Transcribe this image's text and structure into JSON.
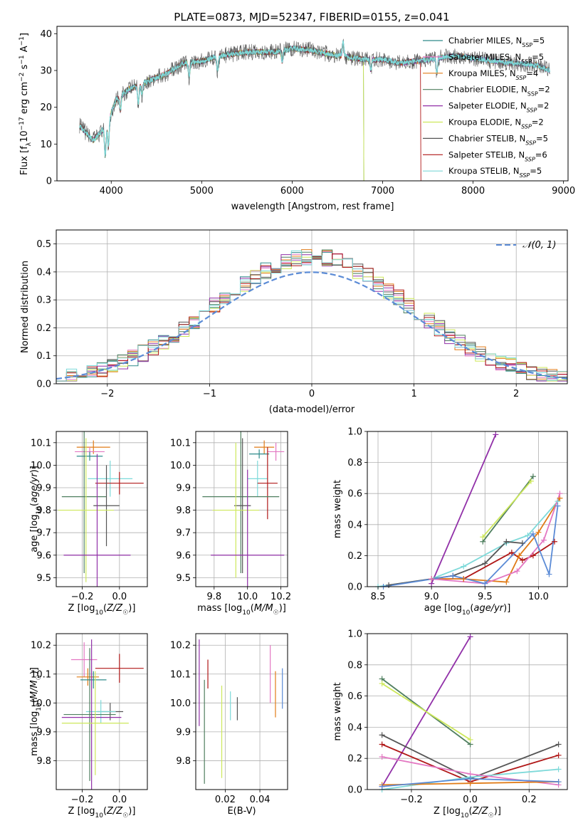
{
  "title": "PLATE=0873, MJD=52347, FIBERID=0155, z=0.041",
  "colors": {
    "Chabrier MILES": "#2e8b8b",
    "Salpeter MILES": "#e377c2",
    "Kroupa MILES": "#e07b17",
    "Chabrier ELODIE": "#4f7f5f",
    "Salpeter ELODIE": "#9130a8",
    "Kroupa ELODIE": "#cde85a",
    "Chabrier STELIB": "#555555",
    "Salpeter STELIB": "#b01717",
    "Kroupa STELIB": "#7dd9d9",
    "normal": "#5b8bd6"
  },
  "chart_data": [
    {
      "type": "line",
      "title": "PLATE=0873, MJD=52347, FIBERID=0155, z=0.041",
      "xlabel": "wavelength [Angstrom, rest frame]",
      "ylabel": "Flux [f_λ 10^-17 erg cm^-2 s^-1 A^-1]",
      "xlim": [
        3400,
        9050
      ],
      "ylim": [
        0,
        42
      ],
      "xticks": [
        "4000",
        "5000",
        "6000",
        "7000",
        "8000",
        "9000"
      ],
      "yticks": [
        "0",
        "10",
        "20",
        "30",
        "40"
      ],
      "legend": [
        {
          "label": "Chabrier MILES, N_SSP=5",
          "color": "#2e8b8b"
        },
        {
          "label": "Salpeter MILES, N_SSP=5",
          "color": "#e377c2"
        },
        {
          "label": "Kroupa MILES, N_SSP=4",
          "color": "#e07b17"
        },
        {
          "label": "Chabrier ELODIE, N_SSP=2",
          "color": "#4f7f5f"
        },
        {
          "label": "Salpeter ELODIE, N_SSP=2",
          "color": "#9130a8"
        },
        {
          "label": "Kroupa ELODIE, N_SSP=2",
          "color": "#cde85a"
        },
        {
          "label": "Chabrier STELIB, N_SSP=5",
          "color": "#555555"
        },
        {
          "label": "Salpeter STELIB, N_SSP=6",
          "color": "#b01717"
        },
        {
          "label": "Kroupa STELIB, N_SSP=5",
          "color": "#7dd9d9"
        }
      ],
      "legend_position": "upper right",
      "continuum": {
        "x": [
          3650,
          3800,
          3950,
          4050,
          4200,
          4400,
          4600,
          4800,
          5000,
          5200,
          5500,
          5800,
          6000,
          6200,
          6500,
          6800,
          7000,
          7200,
          7500,
          7800,
          8100,
          8400,
          8700,
          8850
        ],
        "y": [
          15,
          11,
          15,
          22,
          25,
          27,
          29,
          32,
          32.5,
          34,
          35,
          35,
          36,
          35.5,
          34,
          33,
          33,
          32,
          33,
          34,
          33,
          32,
          31.5,
          30
        ]
      },
      "series_cutoffs": [
        {
          "name": "Salpeter STELIB",
          "wavelength": 7420
        },
        {
          "name": "Kroupa ELODIE",
          "wavelength": 6790
        },
        {
          "name": "Chabrier ELODIE",
          "wavelength": 6790
        }
      ]
    },
    {
      "type": "line",
      "xlabel": "(data-model)/error",
      "ylabel": "Normed distribution",
      "xlim": [
        -2.5,
        2.5
      ],
      "ylim": [
        0,
        0.55
      ],
      "xticks": [
        "−2",
        "−1",
        "0",
        "1",
        "2"
      ],
      "yticks": [
        "0.0",
        "0.1",
        "0.2",
        "0.3",
        "0.4",
        "0.5"
      ],
      "legend": [
        {
          "label": "𝒩(0, 1)",
          "color": "#5b8bd6"
        }
      ],
      "histogram_bin_width": 0.1,
      "histogram_series": [
        "Chabrier MILES",
        "Salpeter MILES",
        "Kroupa MILES",
        "Chabrier ELODIE",
        "Salpeter ELODIE",
        "Kroupa ELODIE",
        "Chabrier STELIB",
        "Salpeter STELIB",
        "Kroupa STELIB"
      ]
    },
    {
      "type": "scatter",
      "xlabel": "Z [log10(Z/Z☉)]",
      "ylabel": "age [log10(age/yr)]",
      "xlim": [
        -0.34,
        0.15
      ],
      "ylim": [
        9.46,
        10.15
      ],
      "xticks": [
        "−0.2",
        "0.0"
      ],
      "yticks": [
        "9.5",
        "9.6",
        "9.7",
        "9.8",
        "9.9",
        "10.0",
        "10.1"
      ],
      "points": [
        {
          "name": "Kroupa MILES",
          "x": -0.14,
          "y": 10.08,
          "xerr": 0.09,
          "yerr": 0.03
        },
        {
          "name": "Salpeter MILES",
          "x": -0.16,
          "y": 10.06,
          "xerr": 0.08,
          "yerr": 0.02
        },
        {
          "name": "Chabrier MILES",
          "x": -0.16,
          "y": 10.04,
          "xerr": 0.07,
          "yerr": 0.02
        },
        {
          "name": "Kroupa STELIB",
          "x": -0.05,
          "y": 9.94,
          "xerr": 0.12,
          "yerr": 0.08
        },
        {
          "name": "Salpeter STELIB",
          "x": 0.0,
          "y": 9.92,
          "xerr": 0.13,
          "yerr": 0.05
        },
        {
          "name": "Chabrier ELODIE",
          "x": -0.19,
          "y": 9.86,
          "xerr": 0.12,
          "yerr": 0.34
        },
        {
          "name": "Chabrier STELIB",
          "x": -0.07,
          "y": 9.82,
          "xerr": 0.07,
          "yerr": 0.18
        },
        {
          "name": "Kroupa ELODIE",
          "x": -0.18,
          "y": 9.8,
          "xerr": 0.15,
          "yerr": 0.32
        },
        {
          "name": "Salpeter ELODIE",
          "x": -0.12,
          "y": 9.6,
          "xerr": 0.18,
          "yerr": 0.45
        }
      ]
    },
    {
      "type": "scatter",
      "xlabel": "mass [log10(M/M☉)]",
      "xlim": [
        9.69,
        10.24
      ],
      "ylim": [
        9.46,
        10.15
      ],
      "xticks": [
        "9.8",
        "10.0",
        "10.2"
      ],
      "yticks": [
        "9.5",
        "9.6",
        "9.7",
        "9.8",
        "9.9",
        "10.0",
        "10.1"
      ],
      "points": [
        {
          "name": "Kroupa MILES",
          "x": 10.1,
          "y": 10.08,
          "xerr": 0.06,
          "yerr": 0.03
        },
        {
          "name": "Salpeter MILES",
          "x": 10.17,
          "y": 10.06,
          "xerr": 0.05,
          "yerr": 0.04
        },
        {
          "name": "Chabrier MILES",
          "x": 10.07,
          "y": 10.05,
          "xerr": 0.06,
          "yerr": 0.02
        },
        {
          "name": "Kroupa STELIB",
          "x": 10.06,
          "y": 9.94,
          "xerr": 0.06,
          "yerr": 0.08
        },
        {
          "name": "Salpeter STELIB",
          "x": 10.12,
          "y": 9.92,
          "xerr": 0.06,
          "yerr": 0.16
        },
        {
          "name": "Chabrier ELODIE",
          "x": 9.96,
          "y": 9.86,
          "xerr": 0.23,
          "yerr": 0.34
        },
        {
          "name": "Chabrier STELIB",
          "x": 9.97,
          "y": 9.82,
          "xerr": 0.05,
          "yerr": 0.3
        },
        {
          "name": "Kroupa ELODIE",
          "x": 9.93,
          "y": 9.8,
          "xerr": 0.14,
          "yerr": 0.3
        },
        {
          "name": "Salpeter ELODIE",
          "x": 10.0,
          "y": 9.6,
          "xerr": 0.22,
          "yerr": 0.38
        }
      ]
    },
    {
      "type": "line",
      "xlabel": "age [log10(age/yr)]",
      "ylabel": "mass weight",
      "xlim": [
        8.4,
        10.27
      ],
      "ylim": [
        0,
        1
      ],
      "xticks": [
        "8.5",
        "9.0",
        "9.5",
        "10.0"
      ],
      "yticks": [
        "0.0",
        "0.2",
        "0.4",
        "0.6",
        "0.8",
        "1.0"
      ],
      "series": [
        {
          "name": "Salpeter ELODIE",
          "x": [
            9.0,
            9.6
          ],
          "y": [
            0.02,
            0.98
          ]
        },
        {
          "name": "Chabrier ELODIE",
          "x": [
            9.48,
            9.95
          ],
          "y": [
            0.29,
            0.71
          ]
        },
        {
          "name": "Kroupa ELODIE",
          "x": [
            9.48,
            9.93
          ],
          "y": [
            0.32,
            0.68
          ]
        },
        {
          "name": "Kroupa STELIB",
          "x": [
            8.5,
            9.0,
            9.3,
            9.7,
            9.9,
            10.18
          ],
          "y": [
            0.0,
            0.05,
            0.13,
            0.28,
            0.33,
            0.55
          ]
        },
        {
          "name": "Chabrier STELIB",
          "x": [
            8.6,
            9.2,
            9.5,
            9.7,
            9.85
          ],
          "y": [
            0.01,
            0.07,
            0.15,
            0.29,
            0.28
          ]
        },
        {
          "name": "Salpeter STELIB",
          "x": [
            9.0,
            9.3,
            9.75,
            9.85,
            9.95,
            10.15
          ],
          "y": [
            0.05,
            0.05,
            0.22,
            0.17,
            0.2,
            0.29
          ]
        },
        {
          "name": "Kroupa MILES",
          "x": [
            9.0,
            9.3,
            9.7,
            9.82,
            10.0,
            10.2
          ],
          "y": [
            0.05,
            0.05,
            0.03,
            0.2,
            0.35,
            0.57
          ]
        },
        {
          "name": "Salpeter MILES",
          "x": [
            9.0,
            9.5,
            9.8,
            10.05,
            10.2
          ],
          "y": [
            0.05,
            0.02,
            0.1,
            0.3,
            0.6
          ]
        },
        {
          "name": "normal",
          "x": [
            8.55,
            9.2,
            9.5,
            9.95,
            10.1,
            10.18
          ],
          "y": [
            0.0,
            0.07,
            0.02,
            0.34,
            0.08,
            0.52
          ]
        }
      ]
    },
    {
      "type": "scatter",
      "xlabel": "Z [log10(Z/Z☉)]",
      "ylabel": "mass [log10(M/M☉)]",
      "xlim": [
        -0.34,
        0.15
      ],
      "ylim": [
        9.7,
        10.24
      ],
      "xticks": [
        "−0.2",
        "0.0"
      ],
      "yticks": [
        "9.8",
        "9.9",
        "10.0",
        "10.1",
        "10.2"
      ],
      "points": [
        {
          "name": "Salpeter MILES",
          "x": -0.19,
          "y": 10.15,
          "xerr": 0.07,
          "yerr": 0.06
        },
        {
          "name": "Salpeter STELIB",
          "x": 0.0,
          "y": 10.12,
          "xerr": 0.13,
          "yerr": 0.05
        },
        {
          "name": "Kroupa MILES",
          "x": -0.17,
          "y": 10.09,
          "xerr": 0.06,
          "yerr": 0.03
        },
        {
          "name": "Chabrier MILES",
          "x": -0.14,
          "y": 10.08,
          "xerr": 0.07,
          "yerr": 0.03
        },
        {
          "name": "Chabrier STELIB",
          "x": -0.05,
          "y": 9.97,
          "xerr": 0.07,
          "yerr": 0.03
        },
        {
          "name": "Kroupa STELIB",
          "x": -0.1,
          "y": 9.97,
          "xerr": 0.08,
          "yerr": 0.04
        },
        {
          "name": "Chabrier ELODIE",
          "x": -0.16,
          "y": 9.96,
          "xerr": 0.14,
          "yerr": 0.23
        },
        {
          "name": "Salpeter ELODIE",
          "x": -0.15,
          "y": 9.95,
          "xerr": 0.16,
          "yerr": 0.27
        },
        {
          "name": "Kroupa ELODIE",
          "x": -0.13,
          "y": 9.93,
          "xerr": 0.18,
          "yerr": 0.18
        }
      ]
    },
    {
      "type": "scatter",
      "xlabel": "E(B-V)",
      "xlim": [
        0.003,
        0.056
      ],
      "ylim": [
        9.7,
        10.24
      ],
      "xticks": [
        "0.02",
        "0.04"
      ],
      "yticks": [
        "9.8",
        "9.9",
        "10.0",
        "10.1",
        "10.2"
      ],
      "points": [
        {
          "name": "Salpeter ELODIE",
          "x": 0.005,
          "y": 10.07,
          "yerr": 0.15
        },
        {
          "name": "Chabrier ELODIE",
          "x": 0.008,
          "y": 9.9,
          "yerr": 0.18
        },
        {
          "name": "Salpeter STELIB",
          "x": 0.01,
          "y": 10.1,
          "yerr": 0.05
        },
        {
          "name": "Kroupa ELODIE",
          "x": 0.018,
          "y": 9.9,
          "yerr": 0.16
        },
        {
          "name": "Kroupa STELIB",
          "x": 0.023,
          "y": 9.99,
          "yerr": 0.05
        },
        {
          "name": "Chabrier STELIB",
          "x": 0.027,
          "y": 9.98,
          "yerr": 0.04
        },
        {
          "name": "Salpeter MILES",
          "x": 0.046,
          "y": 10.1,
          "yerr": 0.1
        },
        {
          "name": "Kroupa MILES",
          "x": 0.049,
          "y": 10.03,
          "yerr": 0.08
        },
        {
          "name": "normal",
          "x": 0.053,
          "y": 10.05,
          "yerr": 0.07
        }
      ]
    },
    {
      "type": "line",
      "xlabel": "Z [log10(Z/Z☉)]",
      "ylabel": "mass weight",
      "xlim": [
        -0.35,
        0.33
      ],
      "ylim": [
        0,
        1
      ],
      "xticks": [
        "−0.2",
        "0.0",
        "0.2"
      ],
      "yticks": [
        "0.0",
        "0.2",
        "0.4",
        "0.6",
        "0.8",
        "1.0"
      ],
      "series": [
        {
          "name": "Salpeter ELODIE",
          "x": [
            -0.3,
            0.0
          ],
          "y": [
            0.02,
            0.98
          ]
        },
        {
          "name": "Chabrier ELODIE",
          "x": [
            -0.3,
            0.0
          ],
          "y": [
            0.71,
            0.29
          ]
        },
        {
          "name": "Kroupa ELODIE",
          "x": [
            -0.3,
            0.0
          ],
          "y": [
            0.68,
            0.32
          ]
        },
        {
          "name": "Chabrier STELIB",
          "x": [
            -0.3,
            0.0,
            0.3
          ],
          "y": [
            0.35,
            0.07,
            0.29
          ]
        },
        {
          "name": "Salpeter STELIB",
          "x": [
            -0.3,
            0.0,
            0.3
          ],
          "y": [
            0.29,
            0.05,
            0.22
          ]
        },
        {
          "name": "Kroupa STELIB",
          "x": [
            -0.3,
            0.0,
            0.3
          ],
          "y": [
            0.0,
            0.08,
            0.13
          ]
        },
        {
          "name": "Salpeter MILES",
          "x": [
            -0.3,
            0.0,
            0.3
          ],
          "y": [
            0.21,
            0.1,
            0.03
          ]
        },
        {
          "name": "Kroupa MILES",
          "x": [
            -0.3,
            0.0,
            0.3
          ],
          "y": [
            0.03,
            0.04,
            0.05
          ]
        },
        {
          "name": "normal",
          "x": [
            -0.3,
            0.0,
            0.3
          ],
          "y": [
            0.02,
            0.07,
            0.05
          ]
        }
      ]
    }
  ]
}
